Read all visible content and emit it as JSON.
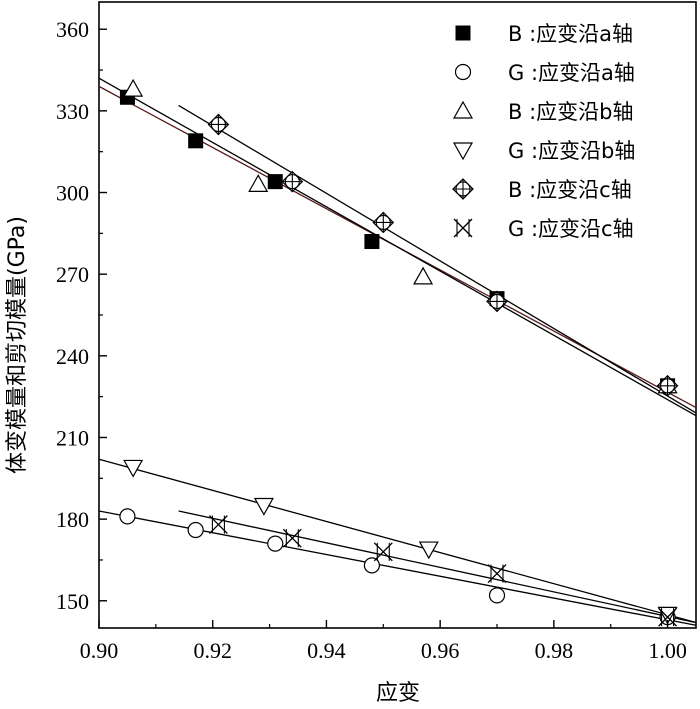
{
  "chart_data": {
    "type": "scatter",
    "xlabel": "应变",
    "ylabel": "体变模量和剪切模量(GPa)",
    "xlim": [
      0.9,
      1.005
    ],
    "ylim": [
      140,
      370
    ],
    "xticks": [
      0.9,
      0.92,
      0.94,
      0.96,
      0.98,
      1.0
    ],
    "xtick_labels": [
      "0.90",
      "0.92",
      "0.94",
      "0.96",
      "0.98",
      "1.00"
    ],
    "yticks": [
      150,
      180,
      210,
      240,
      270,
      300,
      330,
      360
    ],
    "ytick_labels": [
      "150",
      "180",
      "210",
      "240",
      "270",
      "300",
      "330",
      "360"
    ],
    "grid": false,
    "legend_position": "top-right",
    "series": [
      {
        "name": "B :应变沿a轴",
        "marker": "filled-square",
        "x": [
          0.905,
          0.917,
          0.931,
          0.948,
          0.97,
          1.0
        ],
        "y": [
          335,
          319,
          304,
          282,
          261,
          229
        ],
        "fit": {
          "x": [
            0.9,
            1.005
          ],
          "y": [
            339,
            221
          ]
        }
      },
      {
        "name": "G :应变沿a轴",
        "marker": "circle",
        "x": [
          0.905,
          0.917,
          0.931,
          0.948,
          0.97,
          1.0
        ],
        "y": [
          181,
          176,
          171,
          163,
          152,
          144
        ],
        "fit": {
          "x": [
            0.9,
            1.005
          ],
          "y": [
            183,
            141
          ]
        }
      },
      {
        "name": "B :应变沿b轴",
        "marker": "triangle-up",
        "x": [
          0.906,
          0.928,
          0.957,
          1.0
        ],
        "y": [
          338,
          303,
          269,
          229
        ],
        "fit": {
          "x": [
            0.9,
            1.005
          ],
          "y": [
            342,
            218
          ]
        }
      },
      {
        "name": "G :应变沿b轴",
        "marker": "triangle-down",
        "x": [
          0.906,
          0.929,
          0.958,
          1.0
        ],
        "y": [
          199,
          185,
          169,
          145
        ],
        "fit": {
          "x": [
            0.9,
            1.005
          ],
          "y": [
            202,
            142
          ]
        }
      },
      {
        "name": "B :应变沿c轴",
        "marker": "circle-plus",
        "x": [
          0.921,
          0.934,
          0.95,
          0.97,
          1.0
        ],
        "y": [
          325,
          304,
          289,
          260,
          229
        ],
        "fit": {
          "x": [
            0.914,
            1.005
          ],
          "y": [
            332,
            219
          ]
        }
      },
      {
        "name": "G :应变沿c轴",
        "marker": "x-cross",
        "x": [
          0.921,
          0.934,
          0.95,
          0.97,
          1.0
        ],
        "y": [
          178,
          173,
          168,
          160,
          144
        ],
        "fit": {
          "x": [
            0.914,
            1.005
          ],
          "y": [
            183,
            142
          ]
        }
      }
    ]
  }
}
